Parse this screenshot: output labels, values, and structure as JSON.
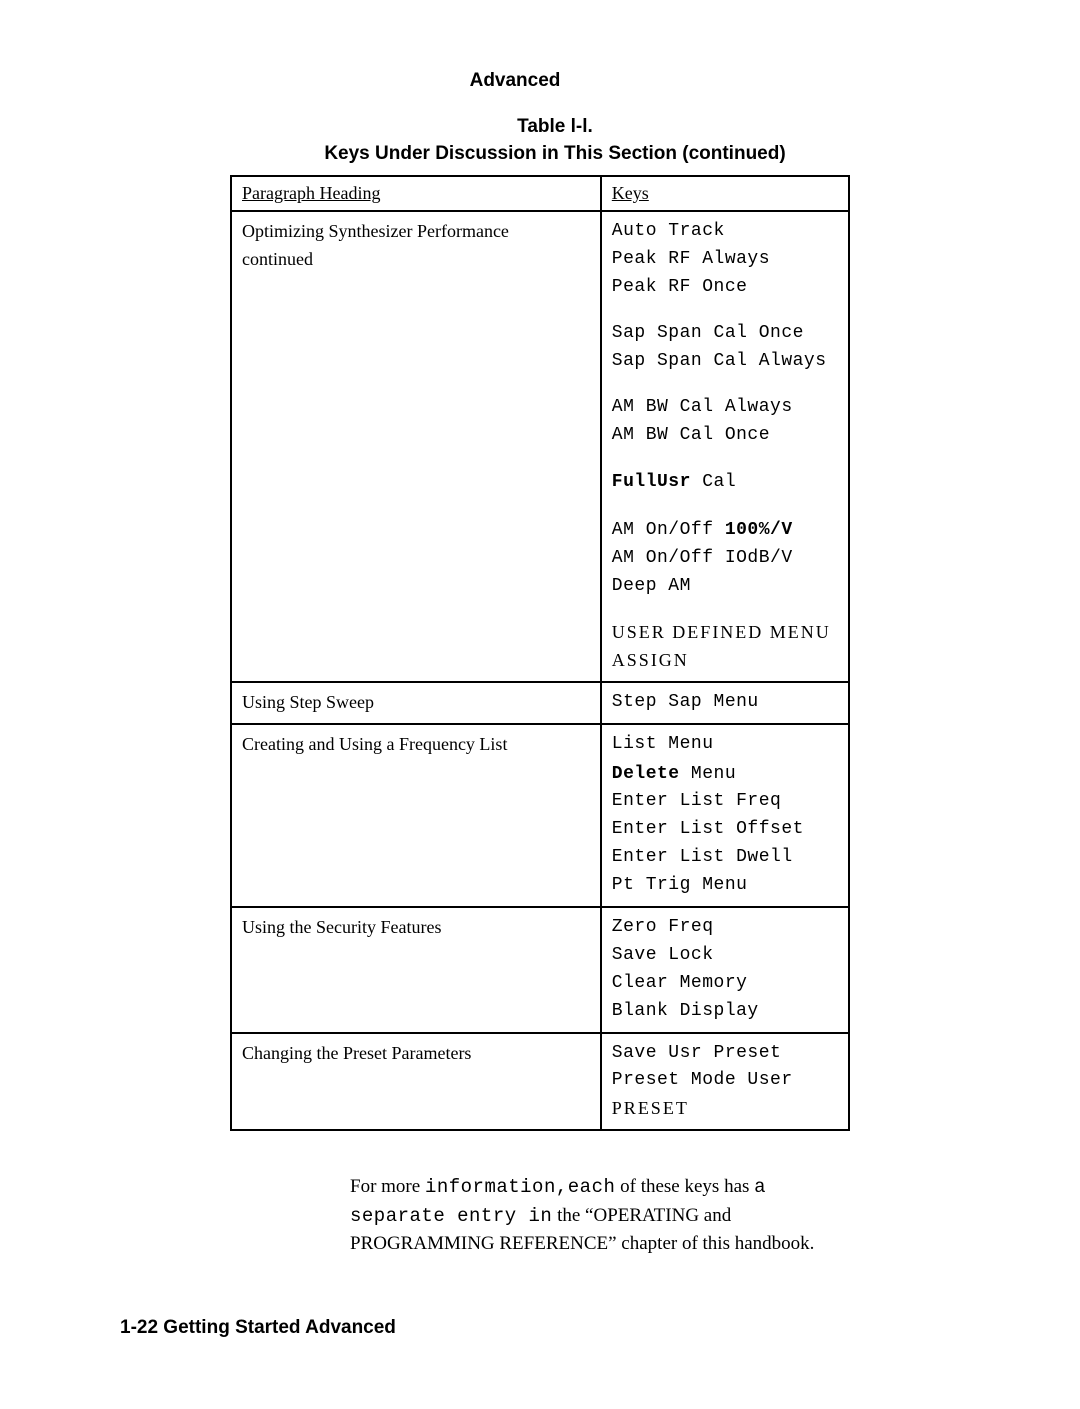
{
  "section_heading": "Advanced",
  "table_caption_line1": "Table l-l.",
  "table_caption_line2": "Keys Under Discussion in This Section (continued)",
  "headers": {
    "left": "Paragraph Heading",
    "right": "Keys"
  },
  "rows": [
    {
      "heading_line1": "Optimizing Synthesizer Performance",
      "heading_line2": "continued",
      "keys": [
        {
          "t": "Auto Track",
          "style": "mono"
        },
        {
          "t": "Peak RF Always",
          "style": "mono"
        },
        {
          "t": "Peak RF Once",
          "style": "mono"
        },
        {
          "gap": true
        },
        {
          "t": "Sap Span Cal Once",
          "style": "mono"
        },
        {
          "t": "Sap Span Cal Always",
          "style": "mono"
        },
        {
          "gap": true
        },
        {
          "t": "AM BW Cal Always",
          "style": "mono"
        },
        {
          "t": "AM BW Cal Once",
          "style": "mono"
        },
        {
          "gap": true
        },
        {
          "parts": [
            {
              "t": "FullUsr ",
              "style": "mono bold"
            },
            {
              "t": "Cal",
              "style": "mono"
            }
          ]
        },
        {
          "gap": true
        },
        {
          "parts": [
            {
              "t": "AM On/Off ",
              "style": "mono"
            },
            {
              "t": "100%/V",
              "style": "mono bold"
            }
          ]
        },
        {
          "t": "AM On/Off IOdB/V",
          "style": "mono"
        },
        {
          "t": "Deep AM",
          "style": "mono"
        },
        {
          "gap": true
        },
        {
          "t": "USER DEFINED MENU",
          "style": "serif smallcap"
        },
        {
          "t": "ASSIGN",
          "style": "serif smallcap"
        }
      ]
    },
    {
      "heading_line1": "Using Step Sweep",
      "keys": [
        {
          "t": "Step Sap Menu",
          "style": "mono"
        }
      ]
    },
    {
      "heading_line1": "Creating and Using a Frequency List",
      "keys": [
        {
          "t": "List Menu",
          "style": "mono"
        },
        {
          "parts": [
            {
              "t": "Delete ",
              "style": "mono bold"
            },
            {
              "t": "Menu",
              "style": "mono"
            }
          ]
        },
        {
          "t": "Enter List Freq",
          "style": "mono"
        },
        {
          "t": "Enter List Offset",
          "style": "mono"
        },
        {
          "t": "Enter List Dwell",
          "style": "mono"
        },
        {
          "t": "Pt Trig Menu",
          "style": "mono"
        }
      ]
    },
    {
      "heading_line1": "Using the Security Features",
      "keys": [
        {
          "t": "Zero Freq",
          "style": "mono"
        },
        {
          "t": "Save Lock",
          "style": "mono"
        },
        {
          "t": "Clear Memory",
          "style": "mono"
        },
        {
          "t": "Blank Display",
          "style": "mono"
        }
      ]
    },
    {
      "heading_line1": "Changing the Preset Parameters",
      "keys": [
        {
          "t": "Save Usr Preset",
          "style": "mono"
        },
        {
          "t": "Preset Mode User",
          "style": "mono"
        },
        {
          "t": "PRESET",
          "style": "serif smallcap"
        }
      ]
    }
  ],
  "body_text_parts": [
    {
      "t": "For more ",
      "style": ""
    },
    {
      "t": "information,each",
      "style": "mono"
    },
    {
      "t": " of these keys has ",
      "style": ""
    },
    {
      "t": "a separate entry in",
      "style": "mono"
    },
    {
      "t": " the “OPERATING and PROGRAMMING REFERENCE” chapter of this handbook.",
      "style": ""
    }
  ],
  "footer": "1-22 Getting Started Advanced",
  "styles": {
    "background_color": "#ffffff",
    "text_color": "#000000",
    "border_color": "#000000"
  }
}
